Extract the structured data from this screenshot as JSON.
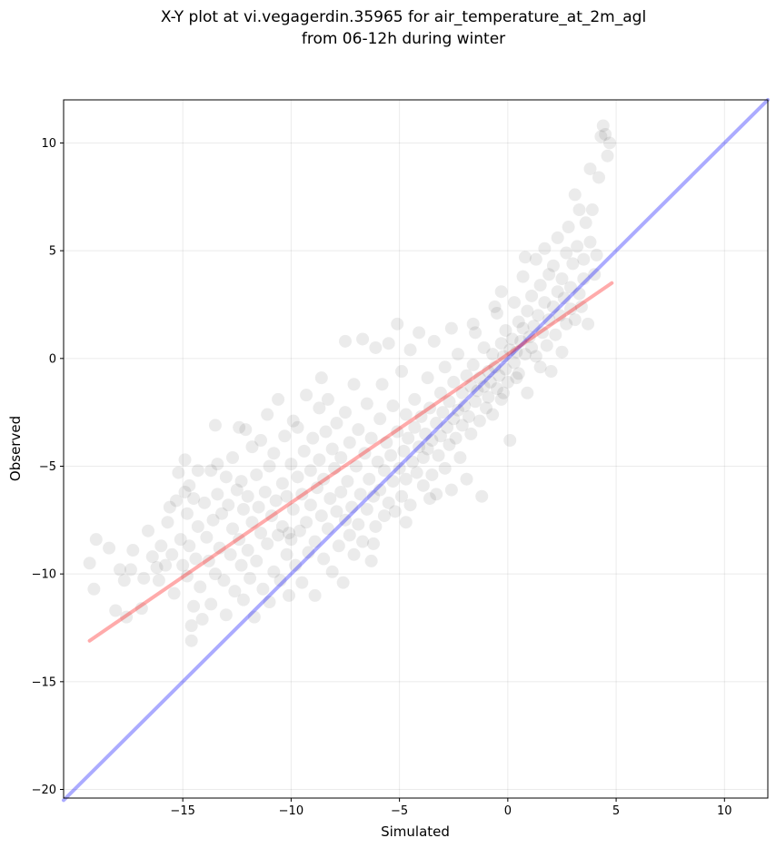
{
  "chart_data": {
    "type": "scatter",
    "title": [
      "X-Y plot at vi.vegagerdin.35965 for air_temperature_at_2m_agl",
      "from 06-12h during winter"
    ],
    "xlabel": "Simulated",
    "ylabel": "Observed",
    "xlim": [
      -20.5,
      12
    ],
    "ylim": [
      -20.4,
      12
    ],
    "xticks": [
      -15,
      -10,
      -5,
      0,
      5,
      10
    ],
    "yticks": [
      -20,
      -15,
      -10,
      -5,
      0,
      5,
      10
    ],
    "xtick_labels": [
      "−15",
      "−10",
      "−5",
      "0",
      "5",
      "10"
    ],
    "ytick_labels": [
      "−20",
      "−15",
      "−10",
      "−5",
      "0",
      "5",
      "10"
    ],
    "grid": true,
    "point_color": "#000000",
    "point_opacity": 0.08,
    "lines": [
      {
        "role": "identity",
        "color": "#0000ff",
        "opacity": 0.33,
        "x": [
          -20.5,
          12
        ],
        "y": [
          -20.5,
          12
        ]
      },
      {
        "role": "fit",
        "color": "#ff0000",
        "opacity": 0.33,
        "x": [
          -19.3,
          4.8
        ],
        "y": [
          -13.1,
          3.5
        ]
      }
    ],
    "points": [
      [
        -19.3,
        -9.5
      ],
      [
        -19.1,
        -10.7
      ],
      [
        -19,
        -8.4
      ],
      [
        -18.4,
        -8.8
      ],
      [
        -18.1,
        -11.7
      ],
      [
        -17.9,
        -9.8
      ],
      [
        -17.7,
        -10.3
      ],
      [
        -17.6,
        -12
      ],
      [
        -17.4,
        -9.8
      ],
      [
        -17.3,
        -8.9
      ],
      [
        -16.8,
        -10.2
      ],
      [
        -16.9,
        -11.6
      ],
      [
        -16.6,
        -8
      ],
      [
        -16.4,
        -9.2
      ],
      [
        -16.2,
        -9.7
      ],
      [
        -16.1,
        -10.3
      ],
      [
        -16,
        -8.7
      ],
      [
        -15.8,
        -9.6
      ],
      [
        -15.7,
        -7.6
      ],
      [
        -15.6,
        -6.9
      ],
      [
        -15.5,
        -9.1
      ],
      [
        -15.4,
        -10.9
      ],
      [
        -15.3,
        -6.6
      ],
      [
        -15.2,
        -5.3
      ],
      [
        -15.1,
        -8.4
      ],
      [
        -15,
        -9.6
      ],
      [
        -14.9,
        -6.2
      ],
      [
        -14.9,
        -4.7
      ],
      [
        -14.8,
        -7.2
      ],
      [
        -14.8,
        -10.1
      ],
      [
        -14.7,
        -5.9
      ],
      [
        -14.7,
        -8.7
      ],
      [
        -14.6,
        -12.4
      ],
      [
        -14.6,
        -13.1
      ],
      [
        -14.5,
        -6.5
      ],
      [
        -14.5,
        -11.5
      ],
      [
        -14.4,
        -9.3
      ],
      [
        -14.3,
        -5.2
      ],
      [
        -14.3,
        -7.8
      ],
      [
        -14.2,
        -10.6
      ],
      [
        -14.1,
        -12.1
      ],
      [
        -14,
        -6.7
      ],
      [
        -13.9,
        -8.3
      ],
      [
        -13.8,
        -9.4
      ],
      [
        -13.7,
        -5.2
      ],
      [
        -13.7,
        -11.4
      ],
      [
        -13.6,
        -7.5
      ],
      [
        -13.5,
        -3.1
      ],
      [
        -13.5,
        -10
      ],
      [
        -13.4,
        -6.3
      ],
      [
        -13.3,
        -8.8
      ],
      [
        -13.2,
        -7.2
      ],
      [
        -13.1,
        -10.3
      ],
      [
        -13,
        -5.5
      ],
      [
        -13,
        -11.9
      ],
      [
        -12.9,
        -6.8
      ],
      [
        -12.8,
        -9.1
      ],
      [
        -12.7,
        -4.6
      ],
      [
        -12.7,
        -7.9
      ],
      [
        -12.6,
        -10.8
      ],
      [
        -12.5,
        -6.1
      ],
      [
        -12.4,
        -8.4
      ],
      [
        -12.3,
        -5.7
      ],
      [
        -12.3,
        -9.6
      ],
      [
        -12.2,
        -7
      ],
      [
        -12.2,
        -11.2
      ],
      [
        -12.1,
        -3.3
      ],
      [
        -12,
        -8.9
      ],
      [
        -12,
        -6.4
      ],
      [
        -11.9,
        -10.2
      ],
      [
        -11.8,
        -4.1
      ],
      [
        -11.8,
        -7.6
      ],
      [
        -11.7,
        -12
      ],
      [
        -11.6,
        -5.4
      ],
      [
        -11.6,
        -9.4
      ],
      [
        -11.5,
        -6.9
      ],
      [
        -11.4,
        -8.1
      ],
      [
        -11.4,
        -3.8
      ],
      [
        -11.3,
        -10.7
      ],
      [
        -11.2,
        -6.2
      ],
      [
        -11.1,
        -2.6
      ],
      [
        -11.1,
        -8.6
      ],
      [
        -11,
        -5
      ],
      [
        -11,
        -11.3
      ],
      [
        -10.9,
        -7.3
      ],
      [
        -10.8,
        -9.9
      ],
      [
        -10.8,
        -4.4
      ],
      [
        -10.7,
        -6.6
      ],
      [
        -10.6,
        -8.2
      ],
      [
        -10.6,
        -1.9
      ],
      [
        -10.5,
        -10.3
      ],
      [
        -10.4,
        -5.8
      ],
      [
        -10.4,
        -7.8
      ],
      [
        -10.3,
        -3.6
      ],
      [
        -10.2,
        -9.1
      ],
      [
        -10.2,
        -6.4
      ],
      [
        -10.1,
        -11
      ],
      [
        -10,
        -4.9
      ],
      [
        -10,
        -8.4
      ],
      [
        -9.9,
        -2.9
      ],
      [
        -9.9,
        -7
      ],
      [
        -9.8,
        -9.6
      ],
      [
        -9.7,
        -5.5
      ],
      [
        -9.7,
        -3.2
      ],
      [
        -9.6,
        -8
      ],
      [
        -9.5,
        -6.3
      ],
      [
        -9.5,
        -10.4
      ],
      [
        -9.4,
        -4.3
      ],
      [
        -9.3,
        -7.6
      ],
      [
        -9.3,
        -1.7
      ],
      [
        -9.2,
        -9
      ],
      [
        -9.1,
        -5.2
      ],
      [
        -9.1,
        -6.8
      ],
      [
        -9,
        -3.7
      ],
      [
        -8.9,
        -8.5
      ],
      [
        -8.9,
        -11
      ],
      [
        -8.8,
        -6
      ],
      [
        -8.7,
        -4.7
      ],
      [
        -8.7,
        -2.3
      ],
      [
        -8.6,
        -7.3
      ],
      [
        -8.5,
        -9.3
      ],
      [
        -8.5,
        -5.6
      ],
      [
        -8.4,
        -3.4
      ],
      [
        -8.3,
        -7.9
      ],
      [
        -8.3,
        -1.9
      ],
      [
        -8.2,
        -6.5
      ],
      [
        -8.1,
        -4.2
      ],
      [
        -8.1,
        -9.9
      ],
      [
        -8,
        -5.1
      ],
      [
        -7.9,
        -7.1
      ],
      [
        -7.9,
        -3
      ],
      [
        -7.8,
        -8.7
      ],
      [
        -7.7,
        -6.2
      ],
      [
        -7.7,
        -4.6
      ],
      [
        -7.6,
        -10.4
      ],
      [
        -7.5,
        -7.5
      ],
      [
        -7.5,
        -2.5
      ],
      [
        -7.4,
        -5.7
      ],
      [
        -7.3,
        -8.2
      ],
      [
        -7.3,
        -3.9
      ],
      [
        -7.2,
        -6.9
      ],
      [
        -7.1,
        -1.2
      ],
      [
        -7.1,
        -9.1
      ],
      [
        -7,
        -5
      ],
      [
        -6.9,
        -7.7
      ],
      [
        -6.9,
        -3.3
      ],
      [
        -6.8,
        -6.3
      ],
      [
        -6.7,
        -8.5
      ],
      [
        -6.7,
        0.9
      ],
      [
        -6.6,
        -4.4
      ],
      [
        -6.5,
        -7
      ],
      [
        -6.5,
        -2.1
      ],
      [
        -6.4,
        -5.6
      ],
      [
        -6.3,
        -9.4
      ],
      [
        -6.3,
        -3.7
      ],
      [
        -6.2,
        -6.4
      ],
      [
        -6.1,
        0.5
      ],
      [
        -6.1,
        -7.8
      ],
      [
        -6,
        -4.8
      ],
      [
        -5.9,
        -2.8
      ],
      [
        -5.9,
        -6.1
      ],
      [
        -5.8,
        -1.2
      ],
      [
        -5.7,
        -5.2
      ],
      [
        -5.7,
        -7.3
      ],
      [
        -5.6,
        -3.9
      ],
      [
        -5.5,
        0.7
      ],
      [
        -5.5,
        -6.7
      ],
      [
        -5.4,
        -4.5
      ],
      [
        -5.3,
        -2.2
      ],
      [
        -5.3,
        -5.7
      ],
      [
        -5.2,
        -7.1
      ],
      [
        -5.1,
        -3.4
      ],
      [
        -5.1,
        1.6
      ],
      [
        -5,
        -5.1
      ],
      [
        -4.9,
        -6.4
      ],
      [
        -4.9,
        -0.6
      ],
      [
        -4.8,
        -4.3
      ],
      [
        -4.7,
        -2.6
      ],
      [
        -4.7,
        -5.6
      ],
      [
        -4.6,
        -3.7
      ],
      [
        -4.5,
        0.4
      ],
      [
        -4.5,
        -6.8
      ],
      [
        -4.4,
        -4.8
      ],
      [
        -4.3,
        -1.9
      ],
      [
        -4.3,
        -3.2
      ],
      [
        -4.2,
        -5.3
      ],
      [
        -4.1,
        -4.1
      ],
      [
        -4.1,
        1.2
      ],
      [
        -4,
        -2.7
      ],
      [
        -3.9,
        -4.6
      ],
      [
        -3.9,
        -5.9
      ],
      [
        -3.8,
        -3.5
      ],
      [
        -3.7,
        -0.9
      ],
      [
        -3.7,
        -4.2
      ],
      [
        -3.6,
        -2.3
      ],
      [
        -3.5,
        -5.4
      ],
      [
        -3.5,
        -3.8
      ],
      [
        -3.4,
        0.8
      ],
      [
        -3.3,
        -3
      ],
      [
        -3.3,
        -6.3
      ],
      [
        -3.2,
        -4.5
      ],
      [
        -3.1,
        -1.6
      ],
      [
        -3.1,
        -3.6
      ],
      [
        -3,
        -2.5
      ],
      [
        -2.9,
        -5.1
      ],
      [
        -2.9,
        -0.4
      ],
      [
        -2.8,
        -3.2
      ],
      [
        -2.7,
        -4
      ],
      [
        -2.7,
        -2
      ],
      [
        -2.6,
        -6.1
      ],
      [
        -2.5,
        -2.8
      ],
      [
        -2.5,
        -1.1
      ],
      [
        -2.4,
        -3.7
      ],
      [
        -2.3,
        -2.4
      ],
      [
        -2.3,
        0.2
      ],
      [
        -2.2,
        -4.6
      ],
      [
        -2.1,
        -1.6
      ],
      [
        -2.1,
        -3.1
      ],
      [
        -2,
        -2.2
      ],
      [
        -1.9,
        -5.6
      ],
      [
        -1.9,
        -0.8
      ],
      [
        -1.8,
        -2.7
      ],
      [
        -1.7,
        -1.3
      ],
      [
        -1.7,
        -3.5
      ],
      [
        -1.6,
        -0.3
      ],
      [
        -1.5,
        -2
      ],
      [
        -1.5,
        1.2
      ],
      [
        -1.4,
        -1.5
      ],
      [
        -1.3,
        -2.9
      ],
      [
        -1.3,
        -0.9
      ],
      [
        -1.2,
        -6.4
      ],
      [
        -1.1,
        -1.3
      ],
      [
        -1.1,
        0.5
      ],
      [
        -1,
        -2.3
      ],
      [
        -0.9,
        -0.6
      ],
      [
        -0.9,
        -1.8
      ],
      [
        -0.8,
        -1.1
      ],
      [
        -0.7,
        0.2
      ],
      [
        -0.7,
        -2.6
      ],
      [
        -0.6,
        -0.4
      ],
      [
        -0.5,
        -1.4
      ],
      [
        -0.5,
        2.1
      ],
      [
        -0.4,
        -0.8
      ],
      [
        -0.3,
        0.7
      ],
      [
        -0.3,
        -1.9
      ],
      [
        -0.2,
        0.1
      ],
      [
        -0.1,
        -0.5
      ],
      [
        -0.1,
        1.3
      ],
      [
        0,
        -1.1
      ],
      [
        0.1,
        0.4
      ],
      [
        0.1,
        -3.8
      ],
      [
        0.2,
        0.9
      ],
      [
        0.3,
        -0.2
      ],
      [
        0.3,
        2.6
      ],
      [
        0.4,
        0.3
      ],
      [
        0.5,
        1.7
      ],
      [
        0.5,
        -0.7
      ],
      [
        0.6,
        0.8
      ],
      [
        0.7,
        3.8
      ],
      [
        0.7,
        1.4
      ],
      [
        0.8,
        0.2
      ],
      [
        0.9,
        2.2
      ],
      [
        0.9,
        -1.6
      ],
      [
        1,
        1
      ],
      [
        1.1,
        0.5
      ],
      [
        1.1,
        2.9
      ],
      [
        1.2,
        1.5
      ],
      [
        1.3,
        0.1
      ],
      [
        1.3,
        4.6
      ],
      [
        1.4,
        2
      ],
      [
        1.5,
        -0.4
      ],
      [
        1.5,
        3.4
      ],
      [
        1.6,
        1.2
      ],
      [
        1.7,
        2.6
      ],
      [
        1.7,
        5.1
      ],
      [
        1.8,
        0.6
      ],
      [
        1.9,
        3.9
      ],
      [
        1.9,
        1.8
      ],
      [
        2,
        -0.6
      ],
      [
        2.1,
        2.4
      ],
      [
        2.1,
        4.3
      ],
      [
        2.2,
        1.1
      ],
      [
        2.3,
        3.1
      ],
      [
        2.3,
        5.6
      ],
      [
        2.4,
        2
      ],
      [
        2.5,
        0.3
      ],
      [
        2.5,
        3.7
      ],
      [
        2.6,
        2.8
      ],
      [
        2.7,
        4.9
      ],
      [
        2.7,
        1.6
      ],
      [
        2.8,
        6.1
      ],
      [
        2.9,
        3.3
      ],
      [
        2.9,
        2.3
      ],
      [
        3,
        4.4
      ],
      [
        3.1,
        7.6
      ],
      [
        3.1,
        1.8
      ],
      [
        3.2,
        5.2
      ],
      [
        3.3,
        3
      ],
      [
        3.3,
        6.9
      ],
      [
        3.4,
        2.4
      ],
      [
        3.5,
        4.6
      ],
      [
        3.5,
        3.7
      ],
      [
        3.6,
        6.3
      ],
      [
        3.7,
        1.6
      ],
      [
        3.8,
        8.8
      ],
      [
        3.8,
        5.4
      ],
      [
        3.9,
        6.9
      ],
      [
        4,
        3.9
      ],
      [
        4.1,
        4.8
      ],
      [
        4.2,
        8.4
      ],
      [
        4.3,
        10.3
      ],
      [
        4.4,
        10.8
      ],
      [
        4.5,
        10.4
      ],
      [
        4.6,
        9.4
      ],
      [
        4.7,
        10
      ],
      [
        -8.6,
        -0.9
      ],
      [
        -7.5,
        0.8
      ],
      [
        -10.1,
        -8.1
      ],
      [
        -12.4,
        -3.2
      ],
      [
        -13.4,
        -4.9
      ],
      [
        -0.3,
        3.1
      ],
      [
        0.8,
        4.7
      ],
      [
        -0.6,
        2.4
      ],
      [
        -1.6,
        1.6
      ],
      [
        -2.6,
        1.4
      ],
      [
        -3.6,
        -6.5
      ],
      [
        -4.7,
        -7.6
      ],
      [
        -6.2,
        -8.6
      ],
      [
        0.4,
        -0.9
      ],
      [
        -0.2,
        -1.6
      ]
    ]
  }
}
